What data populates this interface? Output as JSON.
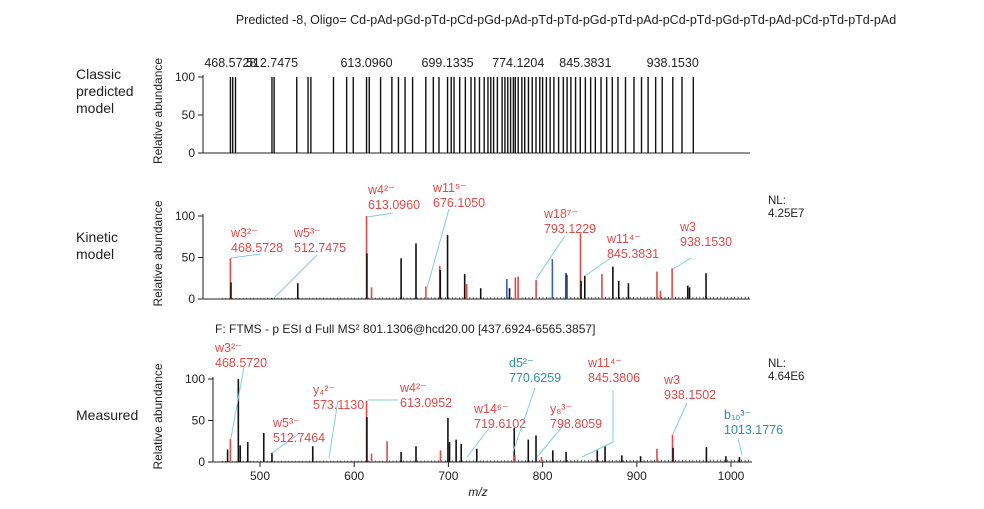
{
  "colors": {
    "red": "#e04a4a",
    "black": "#111111",
    "blue": "#3a5fb0",
    "teal": "#2f8ea0",
    "leader": "#86cfd8"
  },
  "chart_data": [
    {
      "type": "bar",
      "title": "Predicted -8, Oligo= Cd-pAd-pGd-pTd-pCd-pGd-pAd-pTd-pTd-pGd-pTd-pAd-pCd-pTd-pGd-pTd-pAd-pCd-pTd-pTd-pAd",
      "panel_label": [
        "Classic",
        "predicted",
        "model"
      ],
      "ylabel": "Relative abundance",
      "xlim": [
        440,
        1022
      ],
      "ylim": [
        0,
        100
      ],
      "yticks": [
        "0",
        "50",
        "100"
      ],
      "top_labels": [
        "468.5728",
        "512.7475",
        "613.0960",
        "699.1335",
        "774.1204",
        "845.3831",
        "938.1530"
      ],
      "top_label_mz": [
        468.57,
        512.75,
        613.1,
        699.13,
        774.12,
        845.38,
        938.15
      ],
      "x": [
        468.6,
        471,
        474,
        512.7,
        515,
        539,
        551,
        554,
        578,
        592,
        599,
        613.1,
        616,
        628,
        640,
        647,
        654,
        662,
        676,
        684,
        690,
        699.1,
        703,
        706,
        712,
        718,
        724,
        728,
        733,
        738,
        742,
        745,
        748,
        752,
        757,
        760,
        763,
        766,
        769,
        771,
        774.1,
        778,
        781,
        785,
        789,
        793,
        797,
        800,
        804,
        808,
        812,
        817,
        822,
        826,
        830,
        835,
        840,
        845.4,
        851,
        856,
        862,
        868,
        874,
        880,
        888,
        897,
        905,
        912,
        920,
        927,
        938.2,
        948,
        960
      ],
      "values_all": 100
    },
    {
      "type": "bar",
      "panel_label": [
        "Kinetic",
        "model"
      ],
      "ylabel": "Relative abundance",
      "xlim": [
        440,
        1022
      ],
      "ylim": [
        0,
        100
      ],
      "yticks": [
        "0",
        "50",
        "100"
      ],
      "nl": [
        "NL:",
        "4.25E7"
      ],
      "peaks": [
        {
          "mz": 468.6,
          "y": 49,
          "c": "red"
        },
        {
          "mz": 469.2,
          "y": 20,
          "c": "black"
        },
        {
          "mz": 512.7,
          "y": 1,
          "c": "black"
        },
        {
          "mz": 540.1,
          "y": 19,
          "c": "black"
        },
        {
          "mz": 613.1,
          "y": 100,
          "c": "red"
        },
        {
          "mz": 613.5,
          "y": 55,
          "c": "black"
        },
        {
          "mz": 618.4,
          "y": 14,
          "c": "red"
        },
        {
          "mz": 649.8,
          "y": 49,
          "c": "black"
        },
        {
          "mz": 665.6,
          "y": 67,
          "c": "black"
        },
        {
          "mz": 676.1,
          "y": 15,
          "c": "red"
        },
        {
          "mz": 690.8,
          "y": 40,
          "c": "red"
        },
        {
          "mz": 691.4,
          "y": 35,
          "c": "black"
        },
        {
          "mz": 699.1,
          "y": 77,
          "c": "black"
        },
        {
          "mz": 717.3,
          "y": 30,
          "c": "black"
        },
        {
          "mz": 719.4,
          "y": 18,
          "c": "red"
        },
        {
          "mz": 734.3,
          "y": 13,
          "c": "black"
        },
        {
          "mz": 762.0,
          "y": 24,
          "c": "blue"
        },
        {
          "mz": 764.9,
          "y": 13,
          "c": "black"
        },
        {
          "mz": 771.1,
          "y": 26,
          "c": "red"
        },
        {
          "mz": 774.0,
          "y": 27,
          "c": "red"
        },
        {
          "mz": 793.1,
          "y": 23,
          "c": "red"
        },
        {
          "mz": 810.4,
          "y": 48,
          "c": "blue"
        },
        {
          "mz": 824.9,
          "y": 31,
          "c": "black"
        },
        {
          "mz": 826.0,
          "y": 29,
          "c": "blue"
        },
        {
          "mz": 840.2,
          "y": 79,
          "c": "red"
        },
        {
          "mz": 840.8,
          "y": 22,
          "c": "black"
        },
        {
          "mz": 844.8,
          "y": 28,
          "c": "black"
        },
        {
          "mz": 863.0,
          "y": 30,
          "c": "red"
        },
        {
          "mz": 874.6,
          "y": 39,
          "c": "black"
        },
        {
          "mz": 880.8,
          "y": 22,
          "c": "black"
        },
        {
          "mz": 891.1,
          "y": 19,
          "c": "black"
        },
        {
          "mz": 921.4,
          "y": 33,
          "c": "red"
        },
        {
          "mz": 925.1,
          "y": 10,
          "c": "red"
        },
        {
          "mz": 937.5,
          "y": 37,
          "c": "red"
        },
        {
          "mz": 954.1,
          "y": 16,
          "c": "black"
        },
        {
          "mz": 956.0,
          "y": 14,
          "c": "black"
        },
        {
          "mz": 973.5,
          "y": 31,
          "c": "black"
        }
      ],
      "annotations": [
        {
          "ion": "w3²⁻",
          "mz": "468.5728",
          "c": "red"
        },
        {
          "ion": "w5³⁻",
          "mz": "512.7475",
          "c": "red"
        },
        {
          "ion": "w4²⁻",
          "mz": "613.0960",
          "c": "red"
        },
        {
          "ion": "w11⁵⁻",
          "mz": "676.1050",
          "c": "red"
        },
        {
          "ion": "w18⁷⁻",
          "mz": "793.1229",
          "c": "red"
        },
        {
          "ion": "w11⁴⁻",
          "mz": "845.3831",
          "c": "red"
        },
        {
          "ion": "w3",
          "mz": "938.1530",
          "c": "red"
        }
      ]
    },
    {
      "type": "bar",
      "title": "F: FTMS - p ESI d Full MS² 801.1306@hcd20.00 [437.6924-6565.3857]",
      "panel_label": [
        "Measured"
      ],
      "ylabel": "Relative abundance",
      "xlabel": "m/z",
      "xlim": [
        450,
        1022
      ],
      "ylim": [
        0,
        100
      ],
      "yticks": [
        "0",
        "50",
        "100"
      ],
      "xticks": [
        "500",
        "600",
        "700",
        "800",
        "900",
        "1000"
      ],
      "nl": [
        "NL:",
        "4.64E6"
      ],
      "peaks": [
        {
          "mz": 465.6,
          "y": 15,
          "c": "black"
        },
        {
          "mz": 468.6,
          "y": 28,
          "c": "red"
        },
        {
          "mz": 477.0,
          "y": 100,
          "c": "black"
        },
        {
          "mz": 479.0,
          "y": 20,
          "c": "black"
        },
        {
          "mz": 487.0,
          "y": 24,
          "c": "black"
        },
        {
          "mz": 504.0,
          "y": 35,
          "c": "black"
        },
        {
          "mz": 512.7,
          "y": 11,
          "c": "black"
        },
        {
          "mz": 556.0,
          "y": 19,
          "c": "black"
        },
        {
          "mz": 613.1,
          "y": 74,
          "c": "red"
        },
        {
          "mz": 613.5,
          "y": 54,
          "c": "black"
        },
        {
          "mz": 618.4,
          "y": 10,
          "c": "red"
        },
        {
          "mz": 634.9,
          "y": 25,
          "c": "red"
        },
        {
          "mz": 649.8,
          "y": 12,
          "c": "black"
        },
        {
          "mz": 665.6,
          "y": 19,
          "c": "black"
        },
        {
          "mz": 691.6,
          "y": 14,
          "c": "red"
        },
        {
          "mz": 699.5,
          "y": 53,
          "c": "black"
        },
        {
          "mz": 701.2,
          "y": 24,
          "c": "black"
        },
        {
          "mz": 708.2,
          "y": 27,
          "c": "black"
        },
        {
          "mz": 713.6,
          "y": 22,
          "c": "black"
        },
        {
          "mz": 730.1,
          "y": 16,
          "c": "black"
        },
        {
          "mz": 769.9,
          "y": 41,
          "c": "black"
        },
        {
          "mz": 770.6,
          "y": 8,
          "c": "red"
        },
        {
          "mz": 784.8,
          "y": 27,
          "c": "black"
        },
        {
          "mz": 793.0,
          "y": 32,
          "c": "black"
        },
        {
          "mz": 798.8,
          "y": 6,
          "c": "red"
        },
        {
          "mz": 810.8,
          "y": 14,
          "c": "black"
        },
        {
          "mz": 824.9,
          "y": 12,
          "c": "black"
        },
        {
          "mz": 858.0,
          "y": 14,
          "c": "black"
        },
        {
          "mz": 866.3,
          "y": 19,
          "c": "black"
        },
        {
          "mz": 884.1,
          "y": 8,
          "c": "black"
        },
        {
          "mz": 904.0,
          "y": 7,
          "c": "black"
        },
        {
          "mz": 921.4,
          "y": 16,
          "c": "red"
        },
        {
          "mz": 937.9,
          "y": 33,
          "c": "red"
        },
        {
          "mz": 938.5,
          "y": 17,
          "c": "black"
        },
        {
          "mz": 973.9,
          "y": 18,
          "c": "black"
        },
        {
          "mz": 994.6,
          "y": 7,
          "c": "black"
        },
        {
          "mz": 1009.0,
          "y": 6,
          "c": "black"
        }
      ],
      "annotations": [
        {
          "ion": "w3²⁻",
          "mz": "468.5720",
          "c": "red"
        },
        {
          "ion": "w5³⁻",
          "mz": "512.7464",
          "c": "red"
        },
        {
          "ion": "y₄²⁻",
          "mz": "573.1130",
          "c": "red"
        },
        {
          "ion": "w4²⁻",
          "mz": "613.0952",
          "c": "red"
        },
        {
          "ion": "w14⁶⁻",
          "mz": "719.6102",
          "c": "red"
        },
        {
          "ion": "d5²⁻",
          "mz": "770.6259",
          "c": "teal"
        },
        {
          "ion": "y₈³⁻",
          "mz": "798.8059",
          "c": "red"
        },
        {
          "ion": "w11⁴⁻",
          "mz": "845.3806",
          "c": "red"
        },
        {
          "ion": "w3",
          "mz": "938.1502",
          "c": "red"
        },
        {
          "ion": "b₁₀³⁻",
          "mz": "1013.1776",
          "c": "teal"
        }
      ]
    }
  ]
}
